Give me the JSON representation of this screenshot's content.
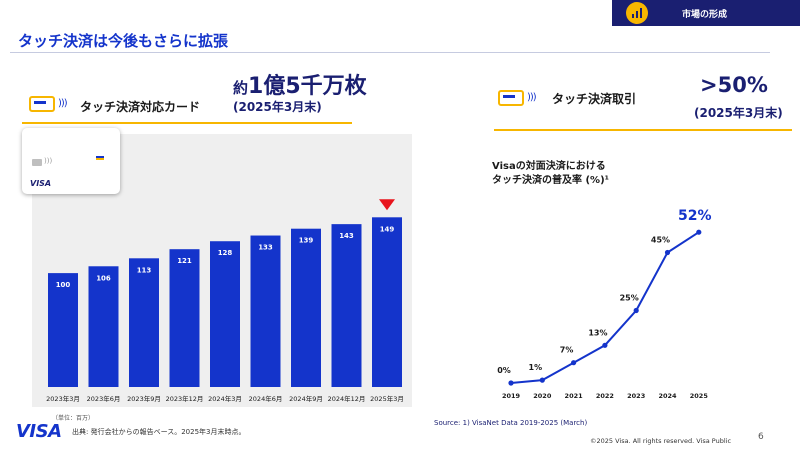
{
  "header": {
    "tag_label": "市場の形成",
    "title": "タッチ決済は今後もさらに拡張"
  },
  "left_panel": {
    "label": "タッチ決済対応カード",
    "highlight_prefix": "約",
    "highlight_value": "1億5千万枚",
    "as_of": "(2025年3月末)",
    "card_brand": "VISA"
  },
  "right_panel": {
    "label": "タッチ決済取引",
    "highlight_value": ">50%",
    "as_of": "(2025年3月末)",
    "line_title_1": "Visaの対面決済における",
    "line_title_2": "タッチ決済の普及率 (%)¹"
  },
  "colors": {
    "brand_navy": "#1a1f71",
    "brand_blue": "#1434cb",
    "accent_yellow": "#f7b600",
    "marker_red": "#e8141c"
  },
  "chart_data": [
    {
      "type": "bar",
      "categories": [
        "2023年3月",
        "2023年6月",
        "2023年9月",
        "2023年12月",
        "2024年3月",
        "2024年6月",
        "2024年9月",
        "2024年12月",
        "2025年3月"
      ],
      "values": [
        100,
        106,
        113,
        121,
        128,
        133,
        139,
        143,
        149
      ],
      "unit_note": "（単位：百万）",
      "highlight_index": 8,
      "ylim": [
        0,
        180
      ]
    },
    {
      "type": "line",
      "x": [
        "2019",
        "2020",
        "2021",
        "2022",
        "2023",
        "2024",
        "2025"
      ],
      "values": [
        0,
        1,
        7,
        13,
        25,
        45,
        52
      ],
      "labels": [
        "0%",
        "1%",
        "7%",
        "13%",
        "25%",
        "45%",
        "52%"
      ],
      "ylim": [
        0,
        60
      ]
    }
  ],
  "footer": {
    "logo": "VISA",
    "source_left": "出典: 発行会社からの報告ベース。2025年3月末時点。",
    "source_right": "Source: 1) VisaNet Data 2019-2025 (March)",
    "copyright": "©2025 Visa. All rights reserved. Visa Public",
    "page_number": "6"
  }
}
